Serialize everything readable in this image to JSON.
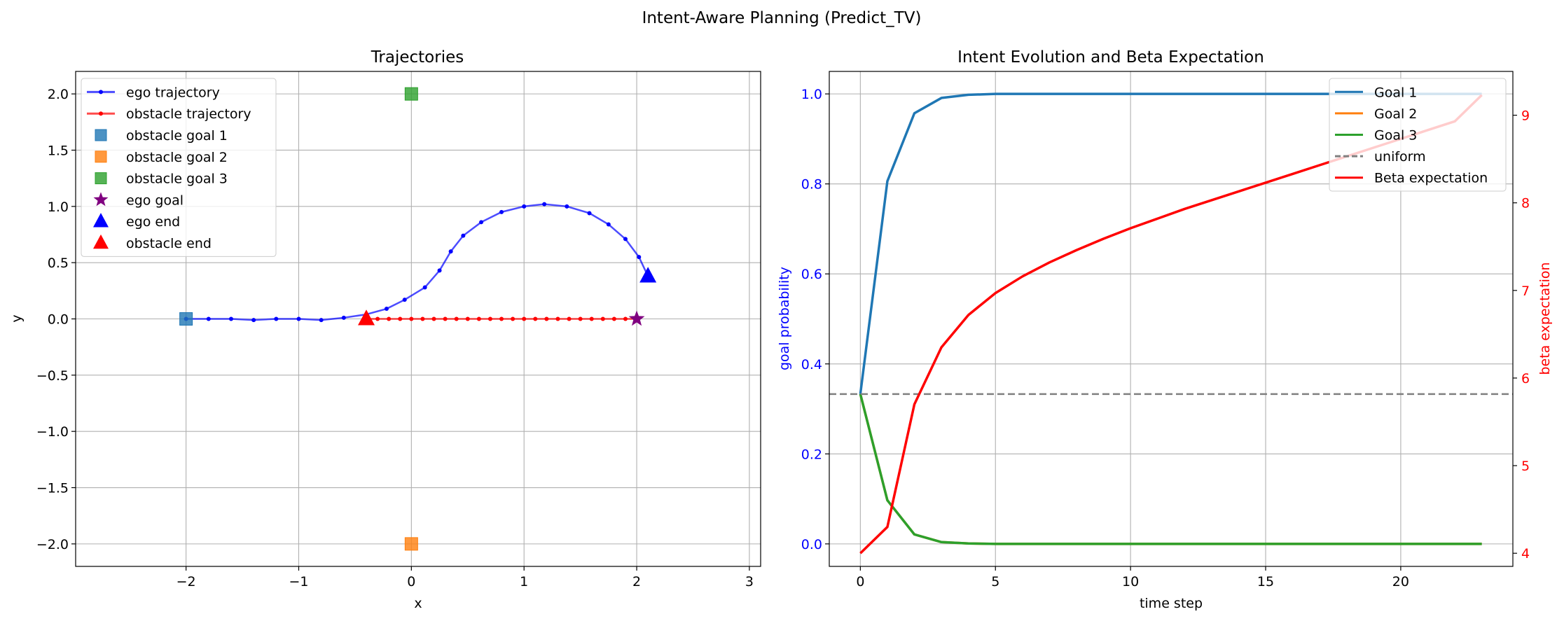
{
  "figure": {
    "title": "Intent-Aware Planning (Predict_TV)"
  },
  "chart_data": [
    {
      "type": "line",
      "title": "Trajectories",
      "xlabel": "x",
      "ylabel": "y",
      "xlim": [
        -2.98,
        3.1
      ],
      "ylim": [
        -2.2,
        2.2
      ],
      "xticks": [
        -2,
        -1,
        0,
        1,
        2,
        3
      ],
      "yticks": [
        -2.0,
        -1.5,
        -1.0,
        -0.5,
        0.0,
        0.5,
        1.0,
        1.5,
        2.0
      ],
      "xtick_labels": [
        "−2",
        "−1",
        "0",
        "1",
        "2",
        "3"
      ],
      "ytick_labels": [
        "−2.0",
        "−1.5",
        "−1.0",
        "−0.5",
        "0.0",
        "0.5",
        "1.0",
        "1.5",
        "2.0"
      ],
      "grid": true,
      "legend_position": "upper-left",
      "series": [
        {
          "name": "ego trajectory",
          "color": "#0000ff",
          "marker": "dot",
          "x": [
            -2.0,
            -1.8,
            -1.6,
            -1.4,
            -1.2,
            -1.0,
            -0.8,
            -0.6,
            -0.4,
            -0.22,
            -0.06,
            0.12,
            0.25,
            0.35,
            0.46,
            0.62,
            0.8,
            1.0,
            1.18,
            1.38,
            1.58,
            1.75,
            1.9,
            2.02,
            2.1
          ],
          "y": [
            0.0,
            0.0,
            0.0,
            -0.01,
            0.0,
            0.0,
            -0.01,
            0.01,
            0.04,
            0.09,
            0.17,
            0.28,
            0.43,
            0.6,
            0.74,
            0.86,
            0.95,
            1.0,
            1.02,
            1.0,
            0.94,
            0.84,
            0.71,
            0.55,
            0.38
          ]
        },
        {
          "name": "obstacle trajectory",
          "color": "#ff0000",
          "marker": "dot",
          "x": [
            -0.4,
            -0.3,
            -0.2,
            -0.1,
            0.0,
            0.1,
            0.2,
            0.3,
            0.4,
            0.5,
            0.6,
            0.7,
            0.8,
            0.9,
            1.0,
            1.1,
            1.2,
            1.3,
            1.4,
            1.5,
            1.6,
            1.7,
            1.8,
            1.9,
            2.0
          ],
          "y": [
            0.0,
            0.0,
            0.0,
            0.0,
            0.0,
            0.0,
            0.0,
            0.0,
            0.0,
            0.0,
            0.0,
            0.0,
            0.0,
            0.0,
            0.0,
            0.0,
            0.0,
            0.0,
            0.0,
            0.0,
            0.0,
            0.0,
            0.0,
            0.0,
            0.0
          ]
        }
      ],
      "points": [
        {
          "name": "obstacle goal 1",
          "marker": "square",
          "color": "#1f77b4",
          "x": -2.0,
          "y": 0.0
        },
        {
          "name": "obstacle goal 2",
          "marker": "square",
          "color": "#ff7f0e",
          "x": 0.0,
          "y": -2.0
        },
        {
          "name": "obstacle goal 3",
          "marker": "square",
          "color": "#2ca02c",
          "x": 0.0,
          "y": 2.0
        },
        {
          "name": "ego goal",
          "marker": "star",
          "color": "#800080",
          "x": 2.0,
          "y": 0.0
        },
        {
          "name": "ego end",
          "marker": "triangle",
          "color": "#0000ff",
          "x": 2.1,
          "y": 0.38
        },
        {
          "name": "obstacle end",
          "marker": "triangle",
          "color": "#ff0000",
          "x": -0.4,
          "y": 0.0
        }
      ]
    },
    {
      "type": "line",
      "title": "Intent Evolution and Beta Expectation",
      "xlabel": "time step",
      "ylabel": "goal probability",
      "y2label": "beta expectation",
      "xlim": [
        -1.15,
        24.15
      ],
      "ylim": [
        -0.05,
        1.05
      ],
      "y2lim": [
        3.85,
        9.5
      ],
      "xticks": [
        0,
        5,
        10,
        15,
        20
      ],
      "yticks": [
        0.0,
        0.2,
        0.4,
        0.6,
        0.8,
        1.0
      ],
      "y2ticks": [
        4,
        5,
        6,
        7,
        8,
        9
      ],
      "xtick_labels": [
        "0",
        "5",
        "10",
        "15",
        "20"
      ],
      "ytick_labels": [
        "0.0",
        "0.2",
        "0.4",
        "0.6",
        "0.8",
        "1.0"
      ],
      "y2tick_labels": [
        "4",
        "5",
        "6",
        "7",
        "8",
        "9"
      ],
      "grid": true,
      "legend_position": "upper-right",
      "x": [
        0,
        1,
        2,
        3,
        4,
        5,
        6,
        7,
        8,
        9,
        10,
        11,
        12,
        13,
        14,
        15,
        16,
        17,
        18,
        19,
        20,
        21,
        22,
        23
      ],
      "series": [
        {
          "name": "Goal 1",
          "axis": "left",
          "color": "#1f77b4",
          "values": [
            0.333,
            0.806,
            0.957,
            0.991,
            0.998,
            1.0,
            1.0,
            1.0,
            1.0,
            1.0,
            1.0,
            1.0,
            1.0,
            1.0,
            1.0,
            1.0,
            1.0,
            1.0,
            1.0,
            1.0,
            1.0,
            1.0,
            1.0,
            1.0
          ]
        },
        {
          "name": "Goal 2",
          "axis": "left",
          "color": "#ff7f0e",
          "values": [
            0.333,
            0.097,
            0.021,
            0.004,
            0.001,
            0.0,
            0.0,
            0.0,
            0.0,
            0.0,
            0.0,
            0.0,
            0.0,
            0.0,
            0.0,
            0.0,
            0.0,
            0.0,
            0.0,
            0.0,
            0.0,
            0.0,
            0.0,
            0.0
          ]
        },
        {
          "name": "Goal 3",
          "axis": "left",
          "color": "#2ca02c",
          "values": [
            0.333,
            0.097,
            0.021,
            0.004,
            0.001,
            0.0,
            0.0,
            0.0,
            0.0,
            0.0,
            0.0,
            0.0,
            0.0,
            0.0,
            0.0,
            0.0,
            0.0,
            0.0,
            0.0,
            0.0,
            0.0,
            0.0,
            0.0,
            0.0
          ]
        },
        {
          "name": "uniform",
          "axis": "left",
          "color": "#808080",
          "dashed": true,
          "constant": 0.333
        },
        {
          "name": "Beta expectation",
          "axis": "right",
          "color": "#ff0000",
          "values": [
            4.0,
            4.3,
            5.7,
            6.35,
            6.72,
            6.97,
            7.16,
            7.32,
            7.46,
            7.59,
            7.71,
            7.82,
            7.93,
            8.03,
            8.13,
            8.23,
            8.33,
            8.43,
            8.53,
            8.63,
            8.73,
            8.83,
            8.93,
            9.23
          ]
        }
      ]
    }
  ]
}
